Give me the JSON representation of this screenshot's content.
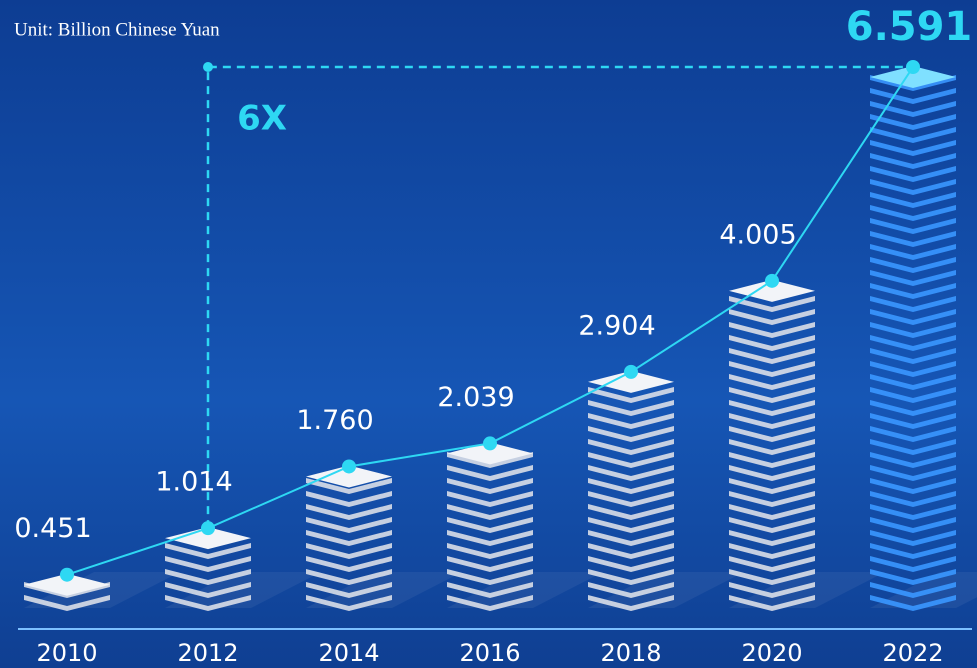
{
  "chart_data": {
    "type": "bar",
    "subtitle": "Unit: Billion Chinese Yuan",
    "annotation": "6X",
    "categories": [
      "2010",
      "2012",
      "2014",
      "2016",
      "2018",
      "2020",
      "2022"
    ],
    "values": [
      0.451,
      1.014,
      1.76,
      2.039,
      2.904,
      4.005,
      6.591
    ],
    "value_labels": [
      "0.451",
      "1.014",
      "1.760",
      "2.039",
      "2.904",
      "4.005",
      "6.591"
    ],
    "color": "#d9dee8",
    "highlight_color": "#3a97ff",
    "line_color": "#2ed8f3"
  }
}
